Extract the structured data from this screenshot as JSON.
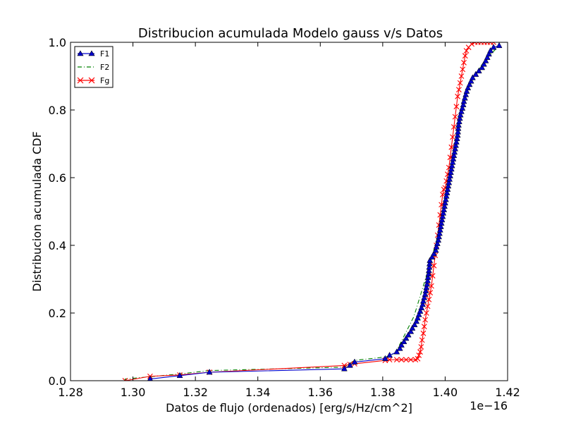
{
  "chart_data": {
    "type": "line",
    "title": "Distribucion acumulada Modelo gauss v/s Datos",
    "xlabel": "Datos de flujo (ordenados) [erg/s/Hz/cm^2]",
    "ylabel": "Distribucion acumulada CDF",
    "x_offset_label": "1e−16",
    "xlim": [
      1.28,
      1.42
    ],
    "ylim": [
      0.0,
      1.0
    ],
    "xticks": [
      "1.28",
      "1.30",
      "1.32",
      "1.34",
      "1.36",
      "1.38",
      "1.40",
      "1.42"
    ],
    "yticks": [
      "0.0",
      "0.2",
      "0.4",
      "0.6",
      "0.8",
      "1.0"
    ],
    "legend_position": "top-left",
    "series": [
      {
        "name": "F1",
        "color": "#0000cc",
        "marker": "triangle",
        "linestyle": "solid",
        "points": [
          [
            1.3055,
            0.005
          ],
          [
            1.315,
            0.015
          ],
          [
            1.3245,
            0.025
          ],
          [
            1.3677,
            0.035
          ],
          [
            1.3695,
            0.045
          ],
          [
            1.371,
            0.055
          ],
          [
            1.3808,
            0.065
          ],
          [
            1.3822,
            0.075
          ],
          [
            1.3845,
            0.085
          ],
          [
            1.3855,
            0.095
          ],
          [
            1.386,
            0.105
          ],
          [
            1.3868,
            0.115
          ],
          [
            1.3875,
            0.125
          ],
          [
            1.3882,
            0.135
          ],
          [
            1.389,
            0.145
          ],
          [
            1.3895,
            0.155
          ],
          [
            1.3902,
            0.165
          ],
          [
            1.3908,
            0.175
          ],
          [
            1.3912,
            0.185
          ],
          [
            1.3916,
            0.195
          ],
          [
            1.392,
            0.205
          ],
          [
            1.3924,
            0.215
          ],
          [
            1.3928,
            0.225
          ],
          [
            1.393,
            0.235
          ],
          [
            1.3933,
            0.245
          ],
          [
            1.3936,
            0.255
          ],
          [
            1.3938,
            0.265
          ],
          [
            1.394,
            0.275
          ],
          [
            1.3942,
            0.285
          ],
          [
            1.3944,
            0.295
          ],
          [
            1.3945,
            0.305
          ],
          [
            1.3947,
            0.315
          ],
          [
            1.3948,
            0.325
          ],
          [
            1.3949,
            0.335
          ],
          [
            1.395,
            0.345
          ],
          [
            1.3951,
            0.355
          ],
          [
            1.3958,
            0.365
          ],
          [
            1.3964,
            0.375
          ],
          [
            1.397,
            0.385
          ],
          [
            1.3972,
            0.395
          ],
          [
            1.3975,
            0.405
          ],
          [
            1.3978,
            0.415
          ],
          [
            1.398,
            0.425
          ],
          [
            1.3982,
            0.435
          ],
          [
            1.3984,
            0.445
          ],
          [
            1.3986,
            0.455
          ],
          [
            1.3988,
            0.465
          ],
          [
            1.399,
            0.475
          ],
          [
            1.3992,
            0.485
          ],
          [
            1.3994,
            0.495
          ],
          [
            1.3996,
            0.505
          ],
          [
            1.3998,
            0.515
          ],
          [
            1.4,
            0.525
          ],
          [
            1.4002,
            0.535
          ],
          [
            1.4004,
            0.545
          ],
          [
            1.4006,
            0.555
          ],
          [
            1.4008,
            0.565
          ],
          [
            1.401,
            0.575
          ],
          [
            1.4012,
            0.585
          ],
          [
            1.4014,
            0.595
          ],
          [
            1.4016,
            0.605
          ],
          [
            1.4018,
            0.615
          ],
          [
            1.402,
            0.625
          ],
          [
            1.4022,
            0.635
          ],
          [
            1.4024,
            0.645
          ],
          [
            1.4026,
            0.655
          ],
          [
            1.4028,
            0.665
          ],
          [
            1.403,
            0.675
          ],
          [
            1.4032,
            0.685
          ],
          [
            1.4034,
            0.695
          ],
          [
            1.4036,
            0.705
          ],
          [
            1.4038,
            0.715
          ],
          [
            1.404,
            0.725
          ],
          [
            1.4041,
            0.735
          ],
          [
            1.4042,
            0.745
          ],
          [
            1.4043,
            0.755
          ],
          [
            1.4045,
            0.765
          ],
          [
            1.4047,
            0.775
          ],
          [
            1.4049,
            0.785
          ],
          [
            1.4052,
            0.795
          ],
          [
            1.4055,
            0.805
          ],
          [
            1.4058,
            0.815
          ],
          [
            1.406,
            0.825
          ],
          [
            1.4063,
            0.835
          ],
          [
            1.4066,
            0.845
          ],
          [
            1.4069,
            0.855
          ],
          [
            1.4073,
            0.865
          ],
          [
            1.4078,
            0.875
          ],
          [
            1.4083,
            0.885
          ],
          [
            1.4088,
            0.895
          ],
          [
            1.4098,
            0.905
          ],
          [
            1.4108,
            0.915
          ],
          [
            1.4118,
            0.925
          ],
          [
            1.4124,
            0.935
          ],
          [
            1.413,
            0.945
          ],
          [
            1.4135,
            0.955
          ],
          [
            1.414,
            0.965
          ],
          [
            1.4145,
            0.975
          ],
          [
            1.4155,
            0.985
          ],
          [
            1.4173,
            0.99
          ]
        ]
      },
      {
        "name": "F2",
        "color": "#008000",
        "marker": "none",
        "linestyle": "dashdot",
        "points": [
          [
            1.2975,
            0.0
          ],
          [
            1.2975,
            0.005
          ],
          [
            1.315,
            0.02
          ],
          [
            1.3245,
            0.03
          ],
          [
            1.3677,
            0.04
          ],
          [
            1.371,
            0.06
          ],
          [
            1.3808,
            0.07
          ],
          [
            1.384,
            0.08
          ],
          [
            1.39,
            0.19
          ],
          [
            1.395,
            0.34
          ],
          [
            1.398,
            0.44
          ],
          [
            1.401,
            0.58
          ],
          [
            1.4035,
            0.7
          ],
          [
            1.405,
            0.79
          ],
          [
            1.4075,
            0.87
          ],
          [
            1.41,
            0.91
          ],
          [
            1.413,
            0.95
          ],
          [
            1.4173,
            0.99
          ]
        ]
      },
      {
        "name": "Fg",
        "color": "#ff0000",
        "marker": "x",
        "linestyle": "solid",
        "points": [
          [
            1.2975,
            0.0
          ],
          [
            1.3055,
            0.013
          ],
          [
            1.315,
            0.017
          ],
          [
            1.3245,
            0.025
          ],
          [
            1.3677,
            0.045
          ],
          [
            1.3695,
            0.048
          ],
          [
            1.371,
            0.05
          ],
          [
            1.3808,
            0.06
          ],
          [
            1.3822,
            0.062
          ],
          [
            1.3845,
            0.062
          ],
          [
            1.386,
            0.062
          ],
          [
            1.3875,
            0.062
          ],
          [
            1.389,
            0.062
          ],
          [
            1.3905,
            0.062
          ],
          [
            1.3912,
            0.065
          ],
          [
            1.3916,
            0.075
          ],
          [
            1.392,
            0.085
          ],
          [
            1.3923,
            0.1
          ],
          [
            1.3926,
            0.12
          ],
          [
            1.393,
            0.14
          ],
          [
            1.3933,
            0.16
          ],
          [
            1.3936,
            0.18
          ],
          [
            1.394,
            0.2
          ],
          [
            1.3944,
            0.22
          ],
          [
            1.3948,
            0.24
          ],
          [
            1.3952,
            0.26
          ],
          [
            1.3956,
            0.28
          ],
          [
            1.396,
            0.31
          ],
          [
            1.3964,
            0.34
          ],
          [
            1.3968,
            0.37
          ],
          [
            1.3972,
            0.4
          ],
          [
            1.3976,
            0.43
          ],
          [
            1.398,
            0.46
          ],
          [
            1.3984,
            0.49
          ],
          [
            1.3988,
            0.52
          ],
          [
            1.3992,
            0.55
          ],
          [
            1.3996,
            0.565
          ],
          [
            1.4,
            0.57
          ],
          [
            1.4004,
            0.59
          ],
          [
            1.4008,
            0.61
          ],
          [
            1.4012,
            0.63
          ],
          [
            1.4016,
            0.66
          ],
          [
            1.402,
            0.69
          ],
          [
            1.4024,
            0.72
          ],
          [
            1.4028,
            0.75
          ],
          [
            1.4032,
            0.78
          ],
          [
            1.4036,
            0.81
          ],
          [
            1.404,
            0.84
          ],
          [
            1.4044,
            0.86
          ],
          [
            1.4048,
            0.88
          ],
          [
            1.4052,
            0.9
          ],
          [
            1.4056,
            0.92
          ],
          [
            1.406,
            0.94
          ],
          [
            1.4064,
            0.96
          ],
          [
            1.4068,
            0.975
          ],
          [
            1.4075,
            0.985
          ],
          [
            1.4085,
            0.995
          ],
          [
            1.4095,
            1.0
          ],
          [
            1.4105,
            1.0
          ],
          [
            1.4115,
            1.0
          ],
          [
            1.4125,
            1.0
          ],
          [
            1.4135,
            1.0
          ],
          [
            1.4145,
            1.0
          ],
          [
            1.4155,
            1.0
          ]
        ]
      }
    ]
  }
}
